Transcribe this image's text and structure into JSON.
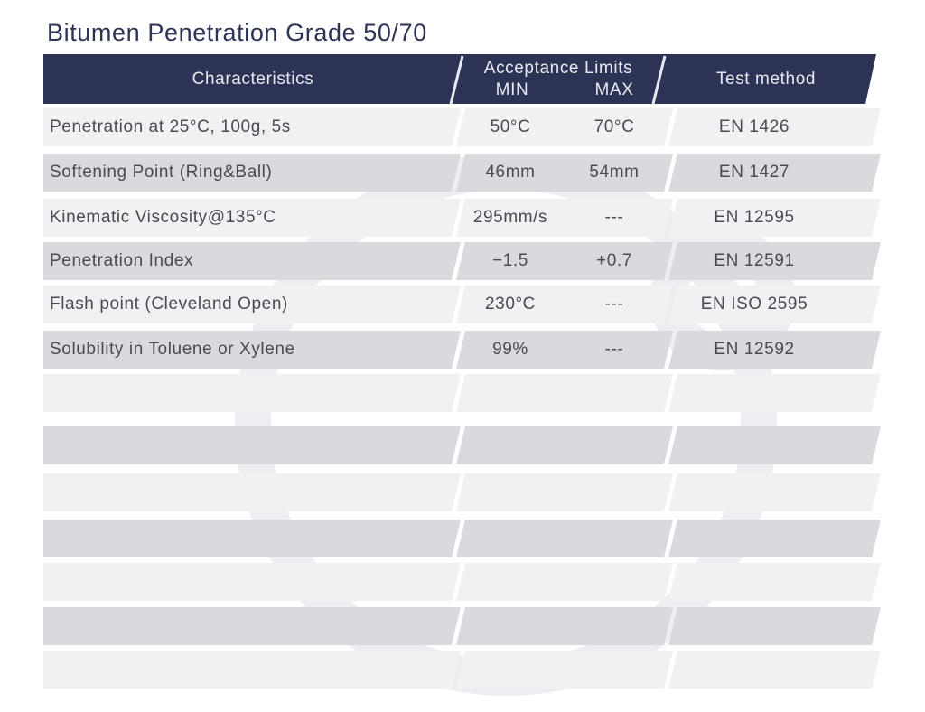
{
  "title": "Bitumen Penetration Grade 50/70",
  "table": {
    "header": {
      "characteristics": "Characteristics",
      "limits": "Acceptance Limits",
      "min": "MIN",
      "max": "MAX",
      "method": "Test method"
    },
    "rows": [
      [
        "Penetration at 25°C, 100g, 5s",
        "50°C",
        "70°C",
        "EN 1426"
      ],
      [
        "Softening Point (Ring&Ball)",
        "46mm",
        "54mm",
        "EN 1427"
      ],
      [
        "Kinematic Viscosity@135°C",
        "295mm/s",
        "---",
        "EN 12595"
      ],
      [
        "Penetration Index",
        "−1.5",
        "+0.7",
        "EN 12591"
      ],
      [
        "Flash point (Cleveland Open)",
        "230°C",
        "---",
        "EN ISO 2595"
      ],
      [
        "Solubility in Toluene or Xylene",
        "99%",
        "---",
        "EN 12592"
      ]
    ]
  }
}
